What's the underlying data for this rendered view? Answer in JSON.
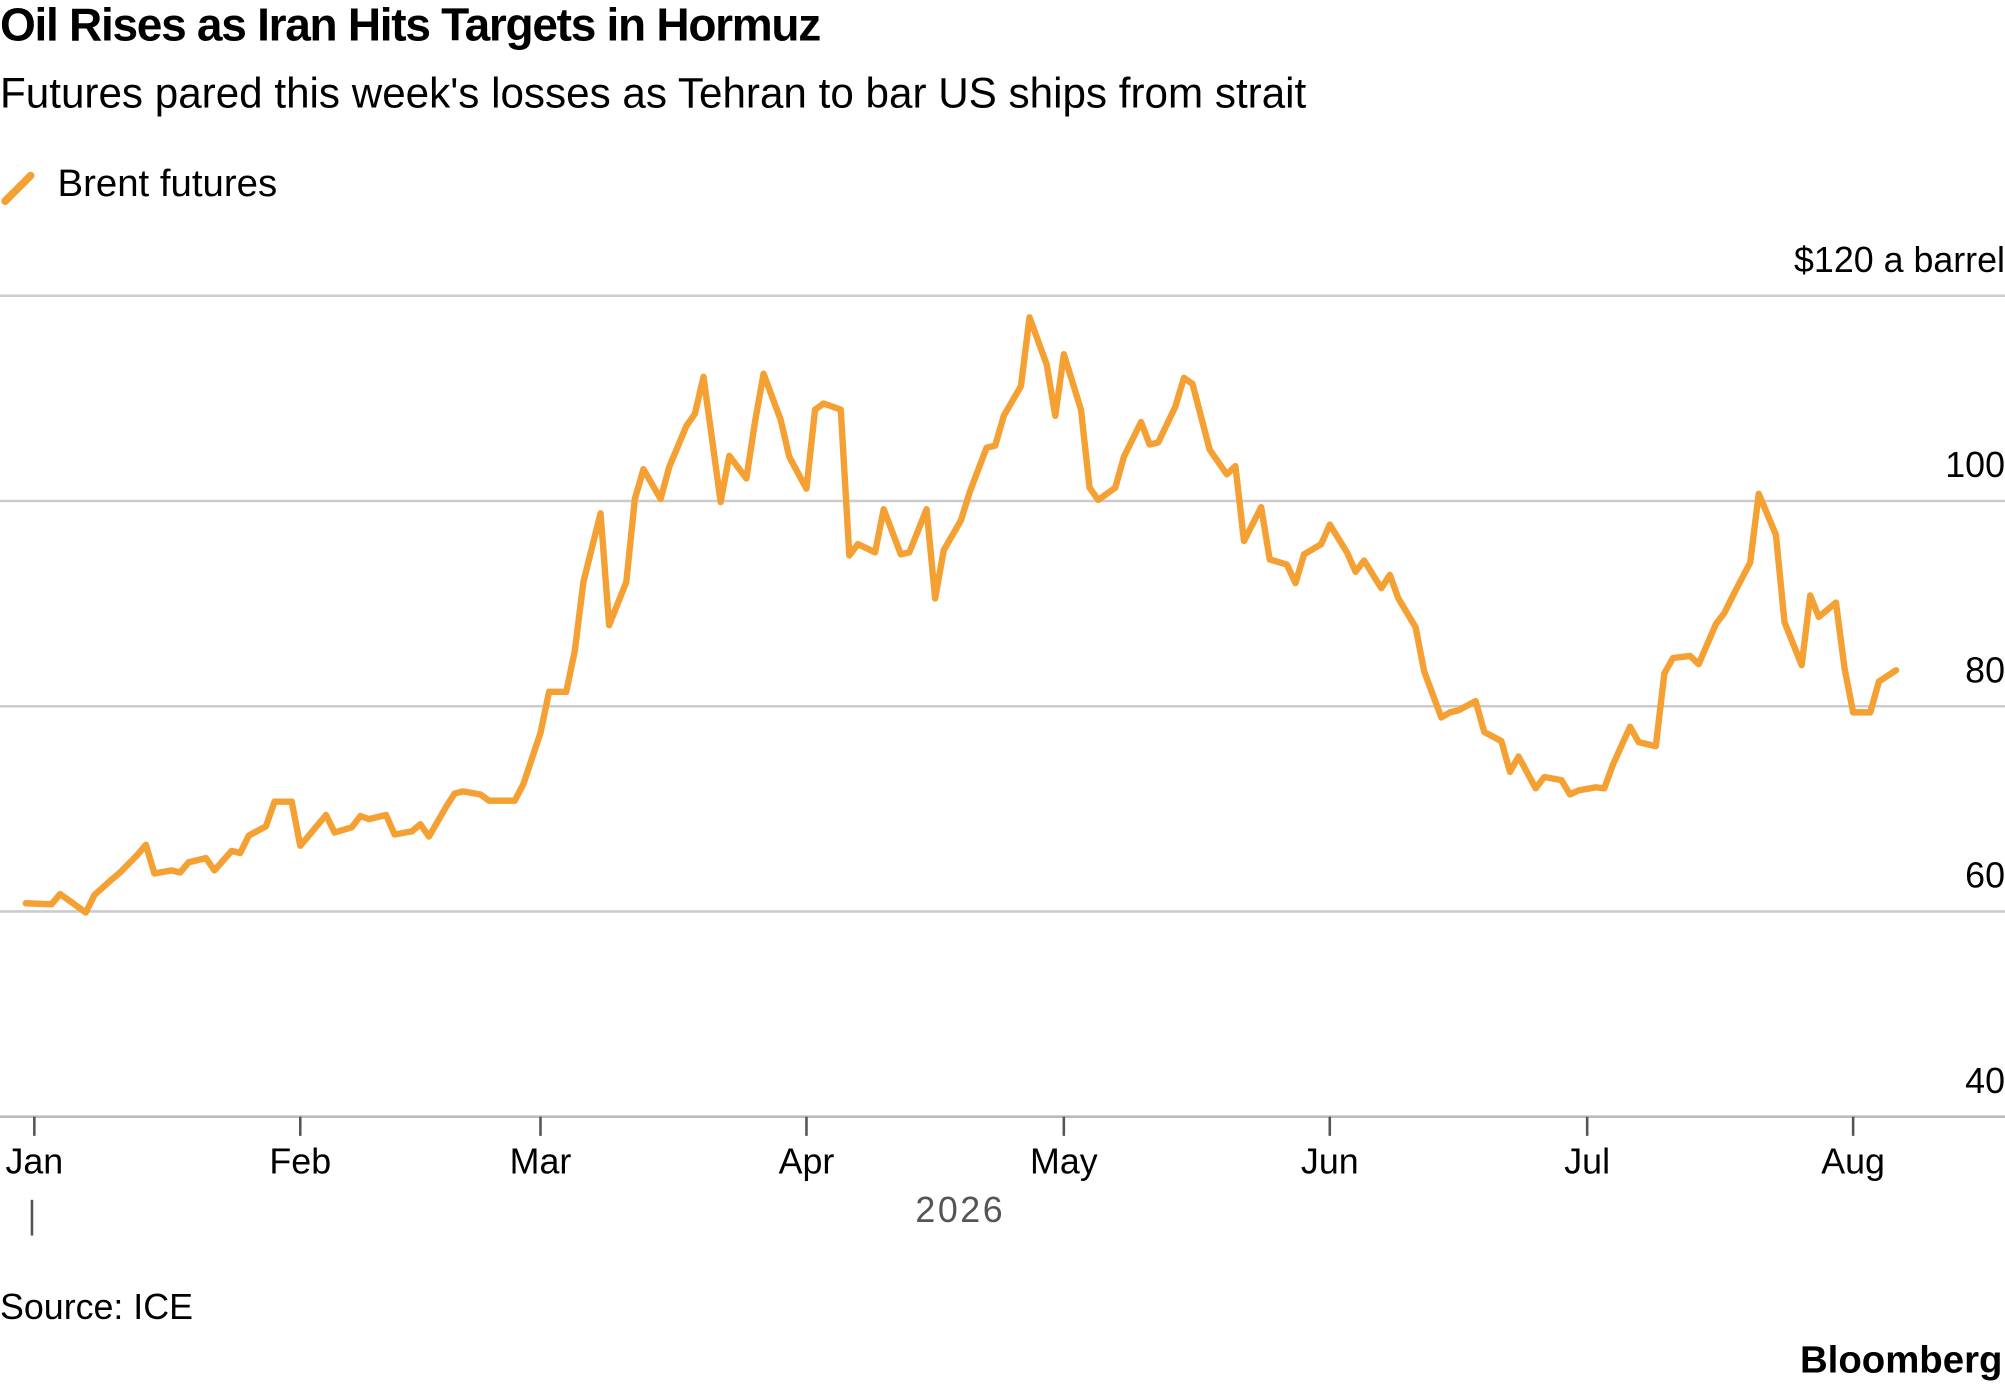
{
  "chart_data": {
    "type": "line",
    "title": "Oil Rises as Iran Hits Targets in Hormuz",
    "subtitle": "Futures pared this week's losses as Tehran to bar US ships from strait",
    "xlabel": "2026",
    "source": "Source: ICE",
    "brand": "Bloomberg",
    "grid": true,
    "legend": "top-left",
    "xlim": [
      -4,
      230
    ],
    "ylim": [
      40,
      120
    ],
    "yticks": [
      40,
      60,
      80,
      100,
      {
        "value": 120,
        "label": "$120 a barrel"
      }
    ],
    "xticks": [
      {
        "value": 0,
        "label": "Jan"
      },
      {
        "value": 31,
        "label": "Feb"
      },
      {
        "value": 59,
        "label": "Mar"
      },
      {
        "value": 90,
        "label": "Apr"
      },
      {
        "value": 120,
        "label": "May"
      },
      {
        "value": 151,
        "label": "Jun"
      },
      {
        "value": 181,
        "label": "Jul"
      },
      {
        "value": 212,
        "label": "Aug"
      }
    ],
    "x": [
      -1,
      2,
      3,
      6,
      7,
      9,
      10,
      12,
      13,
      14,
      16,
      17,
      18,
      20,
      21,
      23,
      24,
      25,
      27,
      28,
      30,
      31,
      32,
      34,
      35,
      37,
      38,
      39,
      41,
      42,
      44,
      45,
      46,
      48,
      49,
      50,
      52,
      53,
      55,
      56,
      57,
      59,
      60,
      62,
      63,
      64,
      66,
      67,
      69,
      70,
      71,
      73,
      74,
      76,
      77,
      78,
      80,
      81,
      83,
      84,
      85,
      87,
      88,
      90,
      91,
      92,
      94,
      95,
      96,
      98,
      99,
      101,
      102,
      104,
      105,
      106,
      108,
      109,
      111,
      112,
      113,
      115,
      116,
      118,
      119,
      120,
      122,
      123,
      124,
      126,
      127,
      129,
      130,
      131,
      133,
      134,
      135,
      137,
      139,
      140,
      141,
      143,
      144,
      146,
      147,
      148,
      150,
      151,
      153,
      154,
      155,
      157,
      158,
      159,
      161,
      162,
      164,
      165,
      166,
      168,
      169,
      171,
      172,
      173,
      175,
      176,
      178,
      179,
      180,
      182,
      183,
      184,
      186,
      187,
      189,
      190,
      191,
      193,
      194,
      196,
      197,
      198,
      200,
      201,
      203,
      204,
      206,
      207,
      208,
      210,
      211,
      212,
      214,
      215,
      217
    ],
    "series": [
      {
        "name": "Brent futures",
        "color": "#f5a032",
        "values": [
          60.8,
          60.7,
          61.7,
          59.9,
          61.6,
          63.1,
          63.8,
          65.5,
          66.5,
          63.7,
          64.0,
          63.8,
          64.8,
          65.2,
          64.0,
          65.9,
          65.7,
          67.4,
          68.3,
          70.7,
          70.7,
          66.4,
          67.4,
          69.4,
          67.7,
          68.2,
          69.3,
          69.0,
          69.4,
          67.5,
          67.8,
          68.5,
          67.3,
          70.2,
          71.5,
          71.7,
          71.4,
          70.8,
          70.8,
          70.8,
          72.4,
          77.4,
          81.4,
          81.4,
          85.4,
          92.1,
          98.8,
          87.9,
          92.1,
          100.2,
          103.1,
          100.2,
          103.3,
          107.3,
          108.5,
          112.1,
          99.9,
          104.4,
          102.2,
          107.7,
          112.4,
          107.9,
          104.3,
          101.2,
          108.9,
          109.5,
          108.9,
          94.7,
          95.8,
          95.0,
          99.2,
          94.8,
          95.0,
          99.2,
          90.5,
          95.2,
          98.1,
          100.8,
          105.2,
          105.4,
          108.3,
          111.2,
          117.9,
          113.3,
          108.3,
          114.3,
          108.9,
          101.3,
          100.1,
          101.3,
          104.3,
          107.7,
          105.5,
          105.7,
          109.2,
          112.0,
          111.4,
          105.0,
          102.6,
          103.4,
          96.1,
          99.4,
          94.3,
          93.8,
          92.0,
          94.8,
          95.8,
          97.7,
          95.0,
          93.1,
          94.2,
          91.5,
          92.8,
          90.5,
          87.7,
          83.4,
          78.9,
          79.4,
          79.6,
          80.5,
          77.5,
          76.6,
          73.6,
          75.1,
          72.0,
          73.1,
          72.8,
          71.4,
          71.8,
          72.1,
          72.0,
          74.3,
          78.0,
          76.5,
          76.1,
          83.2,
          84.7,
          84.9,
          84.1,
          88.0,
          89.1,
          90.8,
          94.0,
          100.7,
          96.7,
          88.2,
          84.0,
          90.8,
          88.7,
          90.1,
          83.7,
          79.4,
          79.4,
          82.4,
          83.5
        ]
      }
    ]
  }
}
